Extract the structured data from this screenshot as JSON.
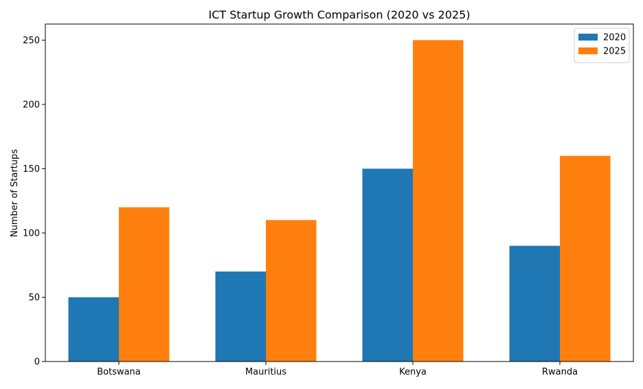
{
  "chart_data": {
    "type": "bar",
    "title": "ICT Startup Growth Comparison (2020 vs 2025)",
    "xlabel": "",
    "ylabel": "Number of Startups",
    "categories": [
      "Botswana",
      "Mauritius",
      "Kenya",
      "Rwanda"
    ],
    "series": [
      {
        "name": "2020",
        "values": [
          50,
          70,
          150,
          90
        ],
        "color": "#1f77b4"
      },
      {
        "name": "2025",
        "values": [
          120,
          110,
          250,
          160
        ],
        "color": "#ff7f0e"
      }
    ],
    "ylim": [
      0,
      262.5
    ],
    "yticks": [
      0,
      50,
      100,
      150,
      200,
      250
    ],
    "grid": false,
    "legend_position": "top-right"
  }
}
